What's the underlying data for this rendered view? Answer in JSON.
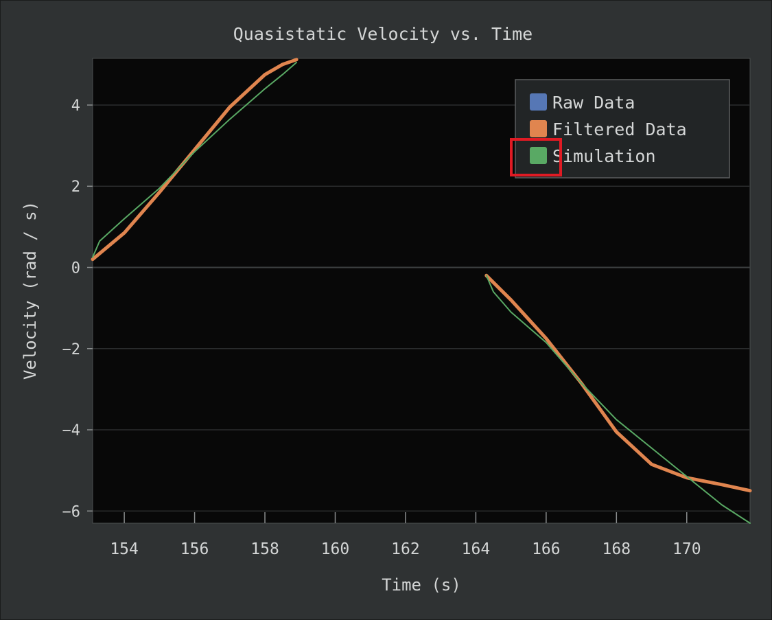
{
  "chart_data": {
    "type": "line",
    "title": "Quasistatic Velocity vs. Time",
    "xlabel": "Time (s)",
    "ylabel": "Velocity (rad / s)",
    "xlim": [
      153.1,
      171.8
    ],
    "ylim": [
      -6.3,
      5.15
    ],
    "xticks": [
      154,
      156,
      158,
      160,
      162,
      164,
      166,
      168,
      170
    ],
    "yticks": [
      -6,
      -4,
      -2,
      0,
      2,
      4
    ],
    "grid": true,
    "legend_position": "top-right",
    "series": [
      {
        "name": "Raw Data",
        "color": "#5677b5",
        "segments": []
      },
      {
        "name": "Filtered Data",
        "color": "#e0854f",
        "segments": [
          [
            [
              153.1,
              0.2
            ],
            [
              154.0,
              0.85
            ],
            [
              155.0,
              1.85
            ],
            [
              156.0,
              2.9
            ],
            [
              157.0,
              3.95
            ],
            [
              158.0,
              4.75
            ],
            [
              158.5,
              5.0
            ],
            [
              158.9,
              5.12
            ]
          ],
          [
            [
              164.3,
              -0.2
            ],
            [
              165.0,
              -0.8
            ],
            [
              166.0,
              -1.75
            ],
            [
              167.0,
              -2.85
            ],
            [
              168.0,
              -4.05
            ],
            [
              169.0,
              -4.85
            ],
            [
              170.0,
              -5.18
            ],
            [
              171.0,
              -5.35
            ],
            [
              171.8,
              -5.5
            ]
          ]
        ]
      },
      {
        "name": "Simulation",
        "color": "#59a964",
        "segments": [
          [
            [
              153.1,
              0.25
            ],
            [
              153.3,
              0.65
            ],
            [
              154.0,
              1.2
            ],
            [
              155.0,
              1.95
            ],
            [
              156.0,
              2.85
            ],
            [
              157.0,
              3.65
            ],
            [
              158.0,
              4.4
            ],
            [
              158.5,
              4.75
            ],
            [
              158.9,
              5.05
            ]
          ],
          [
            [
              164.3,
              -0.2
            ],
            [
              164.5,
              -0.6
            ],
            [
              165.0,
              -1.1
            ],
            [
              166.0,
              -1.85
            ],
            [
              167.0,
              -2.85
            ],
            [
              168.0,
              -3.75
            ],
            [
              169.0,
              -4.45
            ],
            [
              170.0,
              -5.15
            ],
            [
              171.0,
              -5.85
            ],
            [
              171.8,
              -6.3
            ]
          ]
        ]
      }
    ]
  }
}
